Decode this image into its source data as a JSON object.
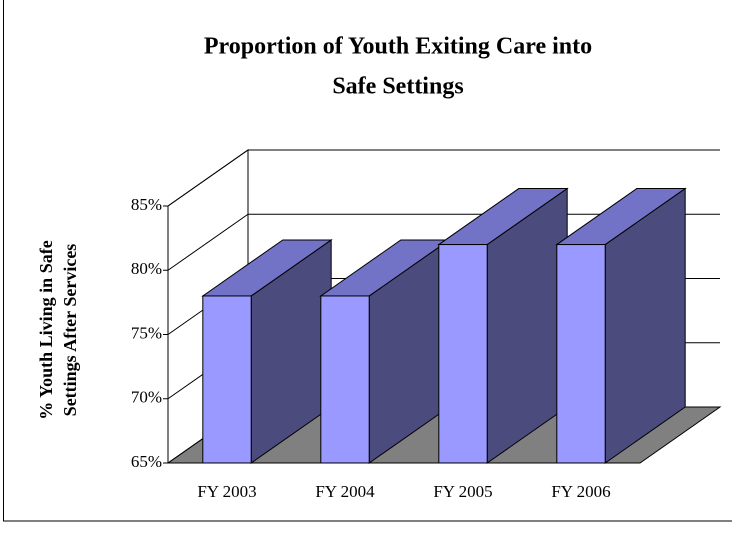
{
  "chart_data": {
    "type": "bar3d",
    "title": [
      "Proportion of Youth Exiting Care into",
      "Safe Settings"
    ],
    "y_label": [
      "% Youth Living in Safe",
      "Settings After Services"
    ],
    "categories": [
      "FY 2003",
      "FY 2004",
      "FY 2005",
      "FY 2006"
    ],
    "values": [
      78,
      78,
      82,
      82
    ],
    "color": "#9999ff",
    "ylim": [
      65,
      85
    ],
    "yticks": [
      {
        "value": 65,
        "label": "65%"
      },
      {
        "value": 70,
        "label": "70%"
      },
      {
        "value": 75,
        "label": "75%"
      },
      {
        "value": 80,
        "label": "80%"
      },
      {
        "value": 85,
        "label": "85%"
      }
    ],
    "grid": true
  }
}
